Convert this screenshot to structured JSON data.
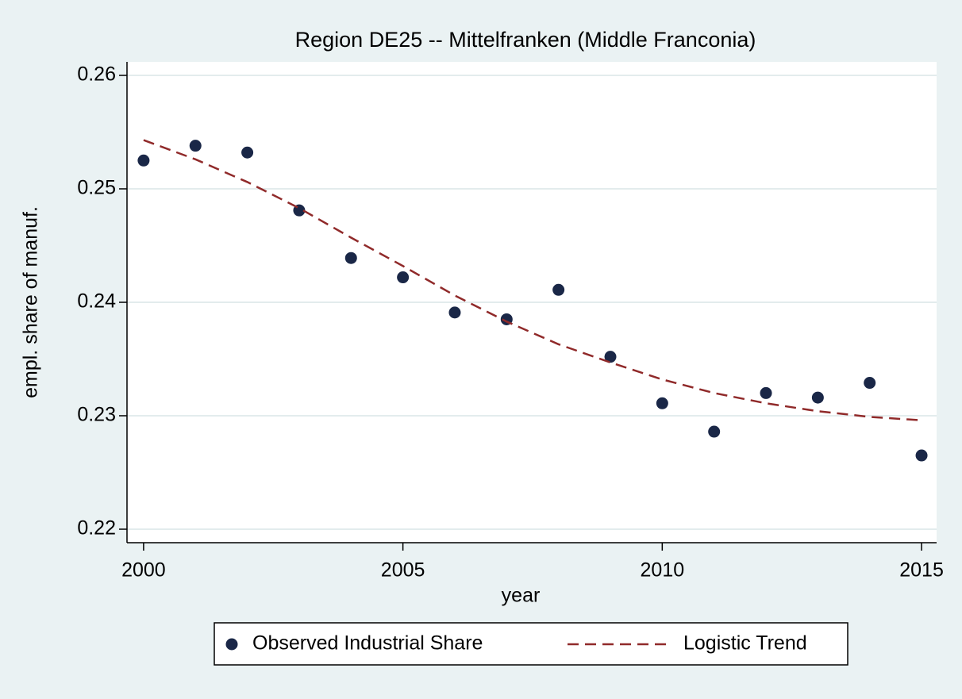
{
  "chart_data": {
    "type": "scatter",
    "title": "Region DE25 -- Mittelfranken (Middle Franconia)",
    "x_label": "year",
    "y_label": "empl. share of manuf.",
    "x": [
      2000,
      2001,
      2002,
      2003,
      2004,
      2005,
      2006,
      2007,
      2008,
      2009,
      2010,
      2011,
      2012,
      2013,
      2014,
      2015
    ],
    "series": [
      {
        "name": "Observed Industrial Share",
        "type": "scatter",
        "color": "#1a2747",
        "values": [
          0.2525,
          0.2538,
          0.2532,
          0.2481,
          0.2439,
          0.2422,
          0.2391,
          0.2385,
          0.2411,
          0.2352,
          0.2311,
          0.2286,
          0.232,
          0.2316,
          0.2329,
          0.2265
        ]
      },
      {
        "name": "Logistic Trend",
        "type": "line",
        "dashed": true,
        "color": "#902a2a",
        "values": [
          0.2543,
          0.2526,
          0.2506,
          0.2483,
          0.2457,
          0.2432,
          0.2406,
          0.2383,
          0.2363,
          0.2347,
          0.2332,
          0.232,
          0.2311,
          0.2304,
          0.2299,
          0.2296
        ]
      }
    ],
    "xlim": [
      1999.68,
      2015.29
    ],
    "xticks": [
      2000,
      2005,
      2010,
      2015
    ],
    "ylim": [
      0.21881,
      0.26119
    ],
    "yticks": [
      0.22,
      0.23,
      0.24,
      0.25,
      0.26
    ],
    "grid": true,
    "legend": "bottom"
  }
}
